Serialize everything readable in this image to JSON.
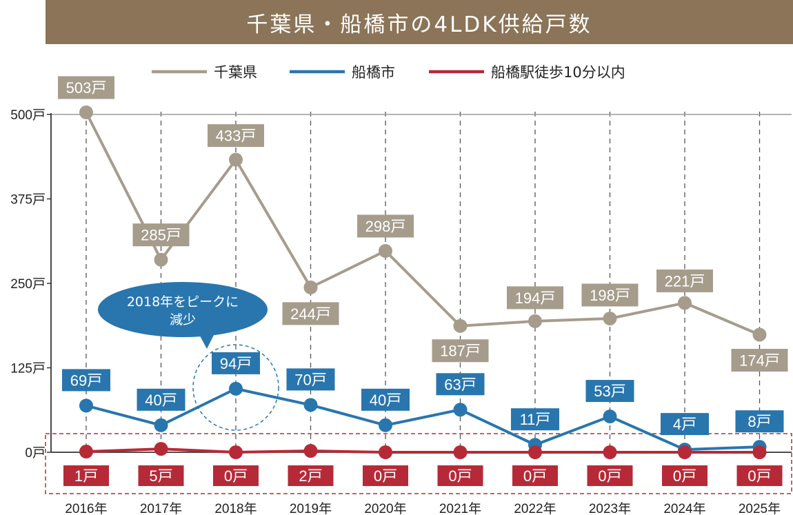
{
  "title": "千葉県・船橋市の4LDK供給戸数",
  "chart_data": {
    "type": "line",
    "categories": [
      "2016年",
      "2017年",
      "2018年",
      "2019年",
      "2020年",
      "2021年",
      "2022年",
      "2023年",
      "2024年",
      "2025年"
    ],
    "y_tick_labels": [
      "0戸",
      "125戸",
      "250戸",
      "375戸",
      "500戸"
    ],
    "y_ticks": [
      0,
      125,
      250,
      375,
      500
    ],
    "ylim": [
      0,
      500
    ],
    "legend_position": "top-center",
    "series": [
      {
        "name": "千葉県",
        "color": "#a59c8c",
        "values": [
          503,
          285,
          433,
          244,
          298,
          187,
          194,
          198,
          221,
          174
        ],
        "labels": [
          "503戸",
          "285戸",
          "433戸",
          "244戸",
          "298戸",
          "187戸",
          "194戸",
          "198戸",
          "221戸",
          "174戸"
        ]
      },
      {
        "name": "船橋市",
        "color": "#2876ad",
        "values": [
          69,
          40,
          94,
          70,
          40,
          63,
          11,
          53,
          4,
          8
        ],
        "labels": [
          "69戸",
          "40戸",
          "94戸",
          "70戸",
          "40戸",
          "63戸",
          "11戸",
          "53戸",
          "4戸",
          "8戸"
        ]
      },
      {
        "name": "船橋駅徒歩10分以内",
        "color": "#b62a37",
        "values": [
          1,
          5,
          0,
          2,
          0,
          0,
          0,
          0,
          0,
          0
        ],
        "labels": [
          "1戸",
          "5戸",
          "0戸",
          "2戸",
          "0戸",
          "0戸",
          "0戸",
          "0戸",
          "0戸",
          "0戸"
        ]
      }
    ],
    "annotation": "2018年をピークに減少"
  }
}
